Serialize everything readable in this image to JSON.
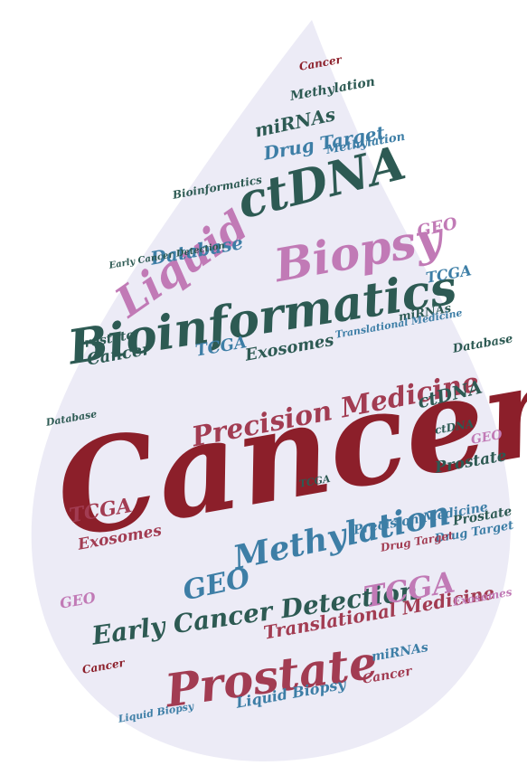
{
  "colors": {
    "drop": "#ecebf6",
    "crimson": "#8c1f2a",
    "teal": "#2d5a53",
    "blue": "#3d7ea6",
    "pink": "#c17ab6",
    "rose": "#a23c52"
  },
  "words": [
    "Cancer",
    "Bioinformatics",
    "Biopsy",
    "Liquid",
    "ctDNA",
    "Prostate",
    "Methylation",
    "Precision Medicine",
    "Early Cancer Detection",
    "TCGA",
    "GEO",
    "Exosomes",
    "Database",
    "Drug Target",
    "miRNAs",
    "Translational Medicine",
    "Liquid Biopsy"
  ]
}
